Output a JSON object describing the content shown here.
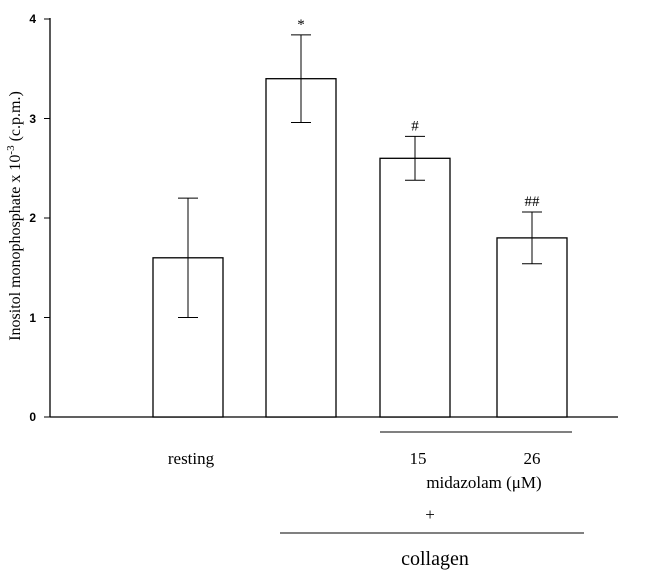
{
  "chart_data": {
    "type": "bar",
    "ylabel_text": "Inositol monophosphate x 10",
    "ylabel_sup": "-3",
    "ylabel_unit": " (c.p.m.)",
    "ylim": [
      0,
      4
    ],
    "yticks": [
      "0",
      "1",
      "2",
      "3",
      "4"
    ],
    "categories": [
      "resting",
      "collagen",
      "collagen + midazolam 15 μM",
      "collagen + midazolam 26 μM"
    ],
    "values": [
      1.6,
      3.4,
      2.6,
      1.8
    ],
    "errors": [
      0.6,
      0.44,
      0.22,
      0.26
    ],
    "significance": [
      "",
      "*",
      "#",
      "##"
    ],
    "x_annotations": {
      "resting": "resting",
      "dose_15": "15",
      "dose_26": "26",
      "midazolam": "midazolam (μM)",
      "plus": "+",
      "collagen": "collagen"
    },
    "colors": {
      "bar_fill": "#ffffff",
      "stroke": "#000000"
    }
  }
}
